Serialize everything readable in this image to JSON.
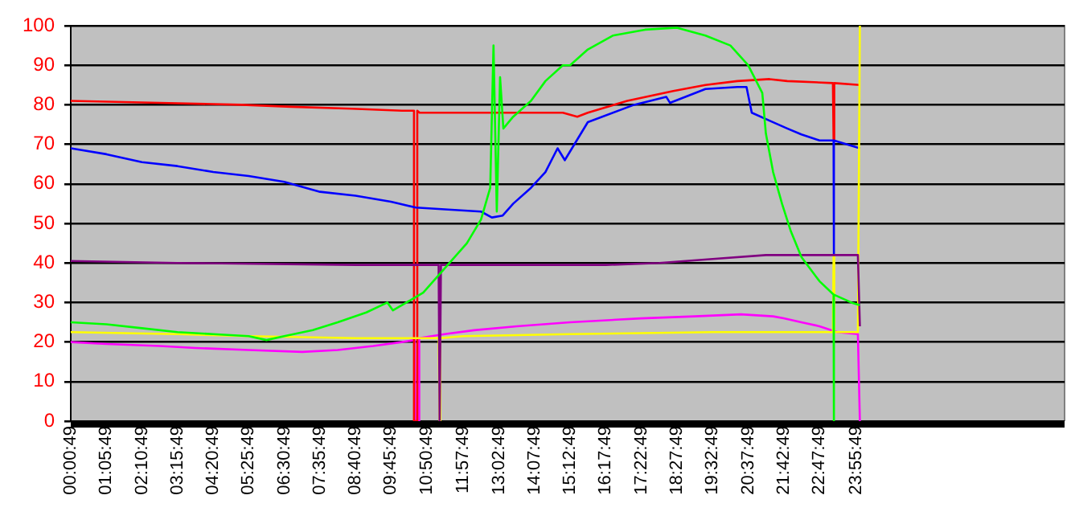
{
  "chart_data": {
    "type": "line",
    "xlim": [
      0.0136,
      30.26
    ],
    "ylim": [
      0,
      100
    ],
    "xticks": [
      {
        "value": 0.0136,
        "label": "00:00:49"
      },
      {
        "value": 1.0969,
        "label": "01:05:49"
      },
      {
        "value": 2.1803,
        "label": "02:10:49"
      },
      {
        "value": 3.2636,
        "label": "03:15:49"
      },
      {
        "value": 4.3469,
        "label": "04:20:49"
      },
      {
        "value": 5.4303,
        "label": "05:25:49"
      },
      {
        "value": 6.5136,
        "label": "06:30:49"
      },
      {
        "value": 7.5969,
        "label": "07:35:49"
      },
      {
        "value": 8.6803,
        "label": "08:40:49"
      },
      {
        "value": 9.7636,
        "label": "09:45:49"
      },
      {
        "value": 10.8469,
        "label": "10:50:49"
      },
      {
        "value": 11.9636,
        "label": "11:57:49"
      },
      {
        "value": 13.0469,
        "label": "13:02:49"
      },
      {
        "value": 14.1303,
        "label": "14:07:49"
      },
      {
        "value": 15.2136,
        "label": "15:12:49"
      },
      {
        "value": 16.2969,
        "label": "16:17:49"
      },
      {
        "value": 17.3803,
        "label": "17:22:49"
      },
      {
        "value": 18.4636,
        "label": "18:27:49"
      },
      {
        "value": 19.5469,
        "label": "19:32:49"
      },
      {
        "value": 20.6303,
        "label": "20:37:49"
      },
      {
        "value": 21.7136,
        "label": "21:42:49"
      },
      {
        "value": 22.7969,
        "label": "22:47:49"
      },
      {
        "value": 23.9303,
        "label": "23:55:49"
      }
    ],
    "yticks": [
      0,
      10,
      20,
      30,
      40,
      50,
      60,
      70,
      80,
      90,
      100
    ],
    "grid": "y",
    "marker": "none",
    "line_style": "solid",
    "series": [
      {
        "color": "#00ff00",
        "x": [
          0.0136,
          1.1,
          2.18,
          3.26,
          4.35,
          5.43,
          5.97,
          6.51,
          7.38,
          8.14,
          9.01,
          9.65,
          9.82,
          10.74,
          11.39,
          12.07,
          12.5,
          12.78,
          12.88,
          12.98,
          13.08,
          13.18,
          13.48,
          14.02,
          14.46,
          14.99,
          15.21,
          15.75,
          16.51,
          17.49,
          18.46,
          19.33,
          20.09,
          20.63,
          21.06,
          21.17,
          21.39,
          21.66,
          21.93,
          22.25,
          22.8,
          23.23,
          23.23,
          23.25,
          23.77,
          24.03
        ],
        "values": [
          25,
          24.5,
          23.5,
          22.5,
          22,
          21.5,
          20.5,
          21.5,
          23,
          25,
          27.5,
          30,
          28,
          32.5,
          38.6,
          45,
          51,
          59,
          95,
          53,
          87,
          74,
          77,
          81,
          86,
          90,
          90,
          94,
          97.5,
          99,
          99.5,
          97.5,
          95,
          90,
          83,
          72.7,
          63,
          55,
          48,
          41.5,
          35.4,
          32,
          0,
          32,
          30,
          29.3
        ]
      },
      {
        "color": "#800080",
        "x": [
          0.0136,
          3.26,
          8.68,
          11.21,
          11.24,
          11.24,
          11.28,
          16.3,
          17.92,
          19.55,
          21.17,
          23.97,
          24.03
        ],
        "values": [
          40.5,
          40,
          39.5,
          39.5,
          0,
          0,
          39.5,
          39.5,
          40,
          41,
          42,
          42,
          24
        ]
      },
      {
        "color": "#ffff00",
        "x": [
          0.0136,
          3.26,
          5.43,
          8.68,
          10.3,
          11.21,
          11.24,
          11.26,
          11.96,
          15.21,
          19.55,
          23.21,
          23.23,
          23.25,
          23.97,
          24.03
        ],
        "values": [
          22.5,
          22,
          21.5,
          21,
          21,
          21,
          0,
          21,
          21.5,
          22,
          22.5,
          22.5,
          41.5,
          22.5,
          22.5,
          100
        ]
      },
      {
        "color": "#0000ff",
        "x": [
          0.0136,
          1.1,
          2.18,
          3.26,
          4.35,
          5.43,
          6.51,
          7.6,
          8.68,
          9.76,
          10.52,
          11.5,
          12.5,
          12.83,
          13.16,
          13.48,
          14.02,
          14.46,
          14.83,
          15.05,
          15.75,
          17.16,
          18.14,
          18.25,
          19.33,
          20.3,
          20.58,
          20.74,
          21.28,
          21.82,
          22.25,
          22.8,
          23.23,
          23.23,
          23.25,
          24.03
        ],
        "values": [
          69,
          67.5,
          65.5,
          64.5,
          63,
          62,
          60.5,
          58,
          57,
          55.5,
          54,
          53.5,
          53,
          51.5,
          52,
          55,
          59,
          63,
          69,
          66,
          75.6,
          80,
          82,
          80.5,
          84,
          84.5,
          84.5,
          78,
          76,
          74,
          72.5,
          71,
          71,
          42,
          71,
          69
        ]
      },
      {
        "color": "#ff0000",
        "x": [
          0.0136,
          2.72,
          5.21,
          6.73,
          8.57,
          10.09,
          10.46,
          10.46,
          10.56,
          10.56,
          10.63,
          14.99,
          15.43,
          15.75,
          16.95,
          18.35,
          19.33,
          20.3,
          21.28,
          21.82,
          23.21,
          23.23,
          23.25,
          24.03
        ],
        "values": [
          81,
          80.5,
          80,
          79.5,
          79,
          78.5,
          78.5,
          0,
          0,
          78.5,
          78,
          78,
          77,
          78,
          81,
          83.5,
          85,
          86,
          86.5,
          86,
          85.5,
          71,
          85.5,
          85
        ]
      },
      {
        "color": "#ff00ff",
        "x": [
          0.0136,
          1.1,
          2.72,
          3.81,
          5.43,
          7.06,
          8.14,
          9.22,
          10.09,
          10.48,
          10.5,
          10.6,
          10.62,
          11.39,
          12.29,
          13.59,
          15.21,
          17.38,
          19.0,
          20.41,
          21.39,
          21.71,
          22.25,
          22.8,
          23.34,
          23.97,
          24.03
        ],
        "values": [
          20,
          19.5,
          19,
          18.5,
          18,
          17.5,
          18,
          19,
          20,
          20.5,
          0,
          0,
          21,
          22,
          23,
          24,
          25,
          26,
          26.5,
          27,
          26.5,
          26,
          25,
          24,
          22.5,
          22,
          0
        ]
      }
    ]
  }
}
